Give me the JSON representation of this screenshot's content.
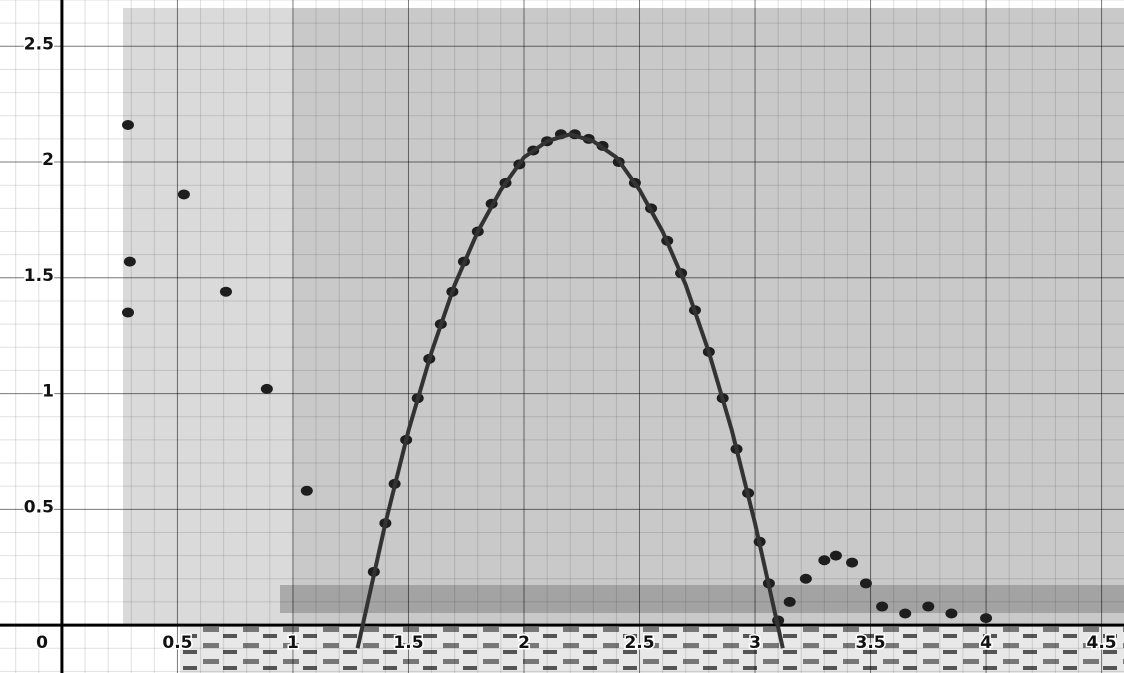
{
  "chart_data": {
    "type": "scatter",
    "xlim": [
      -0.268,
      4.597
    ],
    "ylim": [
      -0.207,
      2.7
    ],
    "xticks": [
      0,
      0.5,
      1,
      1.5,
      2,
      2.5,
      3,
      3.5,
      4,
      4.5
    ],
    "yticks": [
      0.5,
      1,
      1.5,
      2,
      2.5
    ],
    "grid": true,
    "series": [
      {
        "color": "#1e1e1e",
        "x": [
          0.286,
          0.528,
          0.294,
          0.71,
          0.286,
          0.887,
          1.06,
          1.35,
          1.4,
          1.44,
          1.49,
          1.54,
          1.59,
          1.64,
          1.69,
          1.74,
          1.8,
          1.86,
          1.92,
          1.98,
          2.04,
          2.1,
          2.16,
          2.22,
          2.28,
          2.34,
          2.41,
          2.48,
          2.55,
          2.62,
          2.68,
          2.74,
          2.8,
          2.86,
          2.92,
          2.97,
          3.02,
          3.06,
          3.1,
          3.15,
          3.22,
          3.3,
          3.35,
          3.42,
          3.48,
          3.55,
          3.65,
          3.75,
          3.85,
          4.0
        ],
        "values": [
          2.16,
          1.86,
          1.57,
          1.44,
          1.35,
          1.02,
          0.58,
          0.23,
          0.44,
          0.61,
          0.8,
          0.98,
          1.15,
          1.3,
          1.44,
          1.57,
          1.7,
          1.82,
          1.91,
          1.99,
          2.05,
          2.09,
          2.12,
          2.12,
          2.1,
          2.07,
          2.0,
          1.91,
          1.8,
          1.66,
          1.52,
          1.36,
          1.18,
          0.98,
          0.76,
          0.57,
          0.36,
          0.18,
          0.02,
          0.1,
          0.2,
          0.28,
          0.3,
          0.27,
          0.18,
          0.08,
          0.05,
          0.08,
          0.05,
          0.03
        ]
      },
      {
        "type": "line",
        "color": "#333333",
        "x": [
          1.28,
          1.4,
          1.5,
          1.6,
          1.7,
          1.8,
          1.9,
          2.0,
          2.1,
          2.2,
          2.3,
          2.4,
          2.5,
          2.6,
          2.7,
          2.8,
          2.9,
          3.0,
          3.12
        ],
        "values": [
          -0.1,
          0.44,
          0.84,
          1.18,
          1.47,
          1.7,
          1.88,
          2.02,
          2.09,
          2.12,
          2.09,
          2.02,
          1.88,
          1.7,
          1.47,
          1.18,
          0.84,
          0.44,
          -0.1
        ]
      }
    ]
  }
}
